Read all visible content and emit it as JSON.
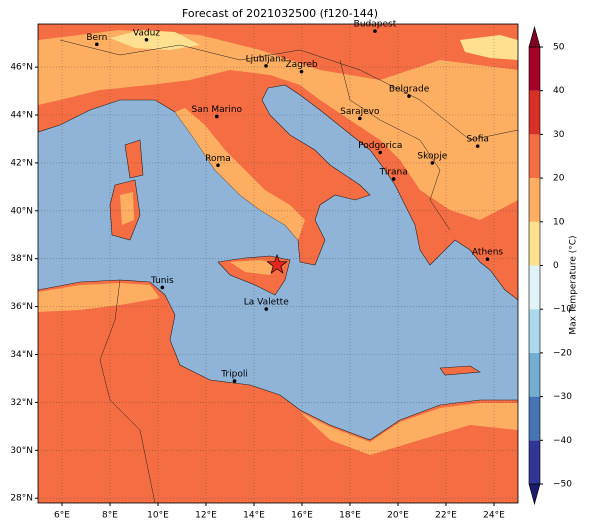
{
  "title": "Forecast of 2021032500 (f120-144)",
  "map": {
    "xlim": [
      5,
      25
    ],
    "ylim": [
      27.8,
      47.8
    ],
    "sea_color": "#90b3d8",
    "xticks": [
      {
        "value": 6,
        "label": "6°E"
      },
      {
        "value": 8,
        "label": "8°E"
      },
      {
        "value": 10,
        "label": "10°E"
      },
      {
        "value": 12,
        "label": "12°E"
      },
      {
        "value": 14,
        "label": "14°E"
      },
      {
        "value": 16,
        "label": "16°E"
      },
      {
        "value": 18,
        "label": "18°E"
      },
      {
        "value": 20,
        "label": "20°E"
      },
      {
        "value": 22,
        "label": "22°E"
      },
      {
        "value": 24,
        "label": "24°E"
      }
    ],
    "yticks": [
      {
        "value": 28,
        "label": "28°N"
      },
      {
        "value": 30,
        "label": "30°N"
      },
      {
        "value": 32,
        "label": "32°N"
      },
      {
        "value": 34,
        "label": "34°N"
      },
      {
        "value": 36,
        "label": "36°N"
      },
      {
        "value": 38,
        "label": "38°N"
      },
      {
        "value": 40,
        "label": "40°N"
      },
      {
        "value": 42,
        "label": "42°N"
      },
      {
        "value": 44,
        "label": "44°N"
      },
      {
        "value": 46,
        "label": "46°N"
      }
    ],
    "grid": true,
    "cities": [
      {
        "name": "Bern",
        "lon": 7.45,
        "lat": 46.95
      },
      {
        "name": "Vaduz",
        "lon": 9.52,
        "lat": 47.14
      },
      {
        "name": "Budapest",
        "lon": 19.04,
        "lat": 47.5
      },
      {
        "name": "Ljubljana",
        "lon": 14.5,
        "lat": 46.05
      },
      {
        "name": "Zagreb",
        "lon": 15.98,
        "lat": 45.81
      },
      {
        "name": "San Marino",
        "lon": 12.45,
        "lat": 43.94
      },
      {
        "name": "Belgrade",
        "lon": 20.46,
        "lat": 44.79
      },
      {
        "name": "Sarajevo",
        "lon": 18.41,
        "lat": 43.86
      },
      {
        "name": "Podgorica",
        "lon": 19.26,
        "lat": 42.44
      },
      {
        "name": "Sofia",
        "lon": 23.32,
        "lat": 42.7
      },
      {
        "name": "Skopje",
        "lon": 21.43,
        "lat": 42.0
      },
      {
        "name": "Roma",
        "lon": 12.5,
        "lat": 41.9
      },
      {
        "name": "Tirana",
        "lon": 19.82,
        "lat": 41.33
      },
      {
        "name": "Athens",
        "lon": 23.73,
        "lat": 37.98
      },
      {
        "name": "Tunis",
        "lon": 10.18,
        "lat": 36.8
      },
      {
        "name": "La Valette",
        "lon": 14.51,
        "lat": 35.9
      },
      {
        "name": "Tripoli",
        "lon": 13.19,
        "lat": 32.89
      }
    ],
    "star": {
      "lon": 14.96,
      "lat": 37.74,
      "color": "#e8251f"
    }
  },
  "colorbar": {
    "label": "Max Temperature (°C)",
    "ticks": [
      {
        "value": -50,
        "label": "−50"
      },
      {
        "value": -40,
        "label": "−40"
      },
      {
        "value": -30,
        "label": "−30"
      },
      {
        "value": -20,
        "label": "−20"
      },
      {
        "value": -10,
        "label": "−10"
      },
      0,
      10,
      20,
      30,
      40,
      50
    ],
    "colors": [
      "#313695",
      "#4575b4",
      "#74add1",
      "#abd9e9",
      "#e0f3f8",
      "#fee090",
      "#fdae61",
      "#f46d43",
      "#d73027",
      "#a50026"
    ],
    "under_color": "#1a1a6e",
    "over_color": "#800026"
  }
}
